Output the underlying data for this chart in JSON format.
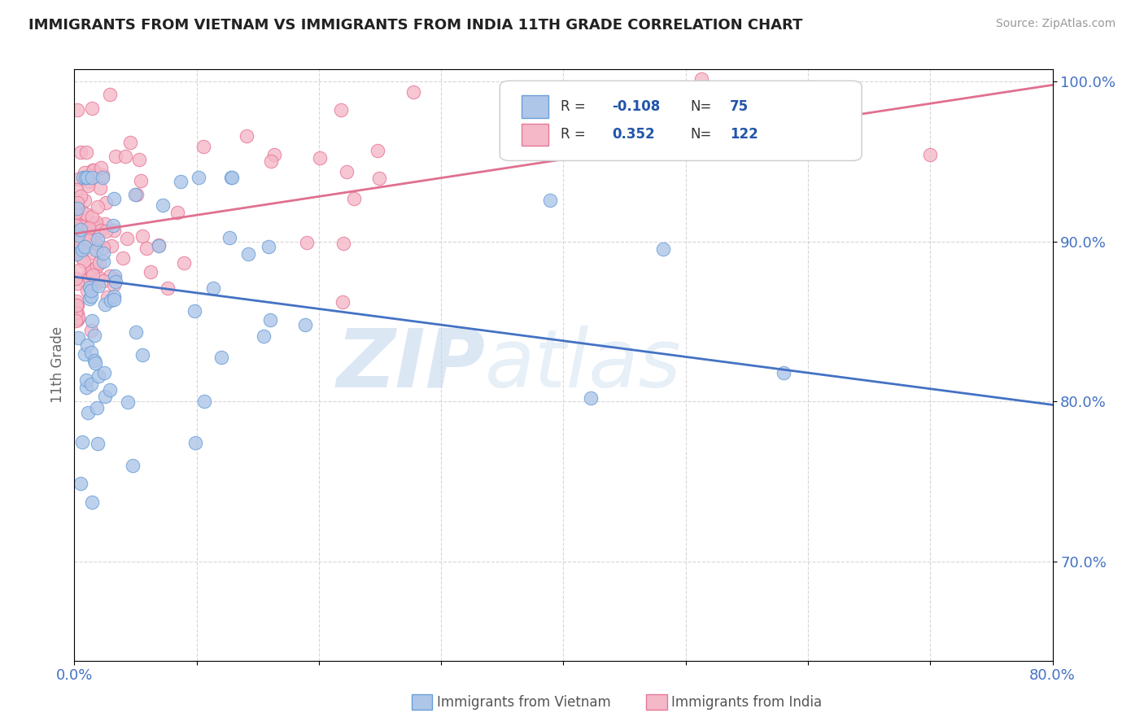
{
  "title": "IMMIGRANTS FROM VIETNAM VS IMMIGRANTS FROM INDIA 11TH GRADE CORRELATION CHART",
  "source": "Source: ZipAtlas.com",
  "ylabel": "11th Grade",
  "r_vietnam": -0.108,
  "n_vietnam": 75,
  "r_india": 0.352,
  "n_india": 122,
  "color_vietnam_fill": "#aec6e8",
  "color_vietnam_edge": "#6a9fd8",
  "color_vietnam_line": "#4472c4",
  "color_india_fill": "#f4b8c8",
  "color_india_edge": "#e87898",
  "color_india_line": "#e07090",
  "watermark_zip": "ZIP",
  "watermark_atlas": "atlas",
  "xlim": [
    0.0,
    0.8
  ],
  "ylim": [
    0.638,
    1.008
  ],
  "yticks": [
    0.7,
    0.8,
    0.9,
    1.0
  ],
  "xticks": [
    0.0,
    0.1,
    0.2,
    0.3,
    0.4,
    0.5,
    0.6,
    0.7,
    0.8
  ],
  "viet_trend_x0": 0.0,
  "viet_trend_y0": 0.878,
  "viet_trend_x1": 0.8,
  "viet_trend_y1": 0.798,
  "india_trend_x0": 0.0,
  "india_trend_y0": 0.905,
  "india_trend_x1": 0.8,
  "india_trend_y1": 0.998
}
